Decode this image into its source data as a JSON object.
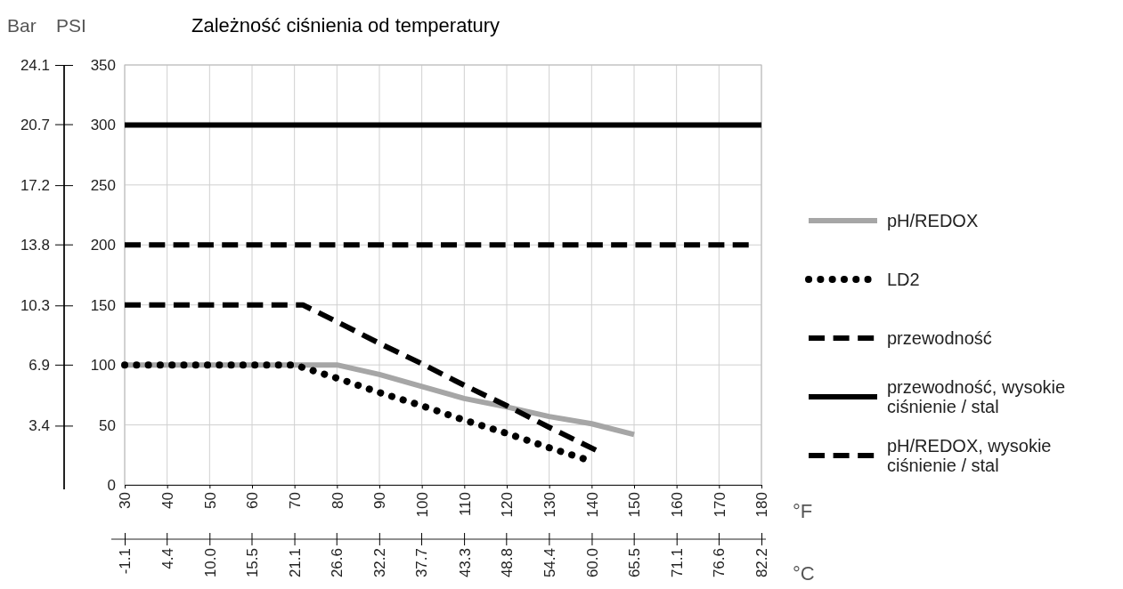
{
  "chart_data": {
    "type": "line",
    "title": "Zależność ciśnienia od temperatury",
    "ylabel": "PSI",
    "y2label": "Bar",
    "xlabel": "°F",
    "x2label": "°C",
    "xlim": [
      30,
      180
    ],
    "xticks": [
      30,
      40,
      50,
      60,
      70,
      80,
      90,
      100,
      110,
      120,
      130,
      140,
      150,
      160,
      170,
      180
    ],
    "x2lim": [
      -1.1,
      82.2
    ],
    "x2ticks": [
      -1.1,
      4.4,
      {
        "value": 10,
        "label": "10.0"
      },
      15.5,
      21.1,
      26.6,
      32.2,
      37.7,
      43.3,
      48.8,
      54.4,
      {
        "value": 60,
        "label": "60.0"
      },
      65.5,
      71.1,
      76.6,
      82.2
    ],
    "ylim": [
      0,
      350
    ],
    "yticks": [
      0,
      50,
      100,
      150,
      200,
      250,
      300,
      350
    ],
    "y2lim": [
      0,
      24.1
    ],
    "y2ticks": [
      3.4,
      6.9,
      10.3,
      13.8,
      17.2,
      20.7,
      24.1
    ],
    "grid": true,
    "legend": "right",
    "series": [
      {
        "name": "pH/REDOX",
        "color": "#a6a6a6",
        "line_style": "solid",
        "x": [
          30,
          80,
          90,
          100,
          110,
          120,
          130,
          140,
          150
        ],
        "values": [
          100,
          100,
          92,
          82,
          72,
          65,
          57,
          51,
          42
        ]
      },
      {
        "name": "LD2",
        "color": "#000000",
        "line_style": "dotted",
        "x": [
          30,
          70,
          80,
          90,
          100,
          110,
          120,
          130,
          138
        ],
        "values": [
          100,
          100,
          89,
          77,
          66,
          54,
          43,
          31,
          22
        ]
      },
      {
        "name": "przewodność",
        "color": "#000000",
        "line_style": "dashed",
        "x": [
          30,
          72,
          80,
          90,
          100,
          110,
          120,
          130,
          141
        ],
        "values": [
          150,
          150,
          136,
          118,
          101,
          83,
          66,
          48,
          29
        ]
      },
      {
        "name": "przewodność, wysokie ciśnienie / stal",
        "color": "#000000",
        "line_style": "solid",
        "x": [
          30,
          180
        ],
        "values": [
          300,
          300
        ]
      },
      {
        "name": "pH/REDOX, wysokie ciśnienie / stal",
        "color": "#000000",
        "line_style": "dashed",
        "x": [
          30,
          177
        ],
        "values": [
          200,
          200
        ]
      }
    ]
  }
}
